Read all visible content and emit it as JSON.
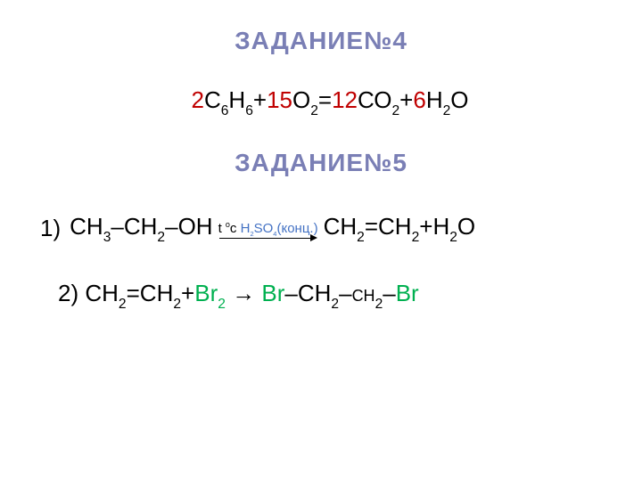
{
  "headings": {
    "task4": "ЗАДАНИЕ№4",
    "task5": "ЗАДАНИЕ№5"
  },
  "eq1": {
    "coef1": "2",
    "C": "С",
    "s6": "6",
    "H1": "Н",
    "plus1": "+",
    "coef2": "15",
    "O": "О",
    "s2a": "2",
    "eq": "=",
    "coef3": "12",
    "C2": "С",
    "O2": "О",
    "s2b": "2",
    "plus2": "+",
    "coef4": "6",
    "H2": "Н",
    "s2c": "2",
    "O3": "О"
  },
  "eq2": {
    "num": "1)",
    "lhs_CH3": "СН",
    "s3": "3",
    "dash1": "–",
    "CH2a": "СН",
    "s2a": "2",
    "dash2": "–",
    "OH": "ОН",
    "cond_t": "t ",
    "cond_deg": "o",
    "cond_c": "c",
    "cond_cat_H": "H",
    "cond_cat_s2": "2",
    "cond_cat_SO": "SO",
    "cond_cat_s4": "4",
    "cond_conc": "(конц.)",
    "rhs_CH2": "СН",
    "s2b": "2",
    "eqd": "=",
    "CH2b": "СН",
    "s2c": "2",
    "plus": "+",
    "H2": "Н",
    "s2d": "2",
    "O": "О"
  },
  "eq3": {
    "num": "2)",
    "CH2a": "СН",
    "s2a": "2",
    "eqd": "=",
    "CH2b": "СН",
    "s2b": "2",
    "plus": "+",
    "Br2": "Br",
    "s2c": "2",
    "arrow": " → ",
    "Br_l": "Br",
    "dash1": "–",
    "CH2c": "СН",
    "s2d": "2",
    "dash2": "–",
    "CH2d": "cн",
    "s2e": "2",
    "dash3": "–",
    "Br_r": "Br"
  },
  "colors": {
    "heading": "#7a7fb5",
    "red": "#c00000",
    "green": "#00b050",
    "blue": "#4472c4",
    "text": "#000000",
    "background": "#ffffff"
  },
  "fonts": {
    "heading_size": 28,
    "body_size": 26,
    "arrow_label_size": 15
  }
}
